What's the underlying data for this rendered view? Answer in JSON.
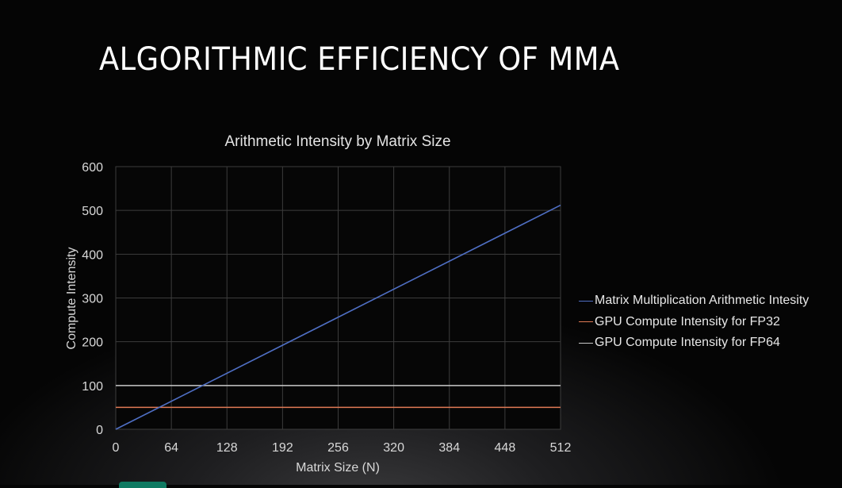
{
  "slide": {
    "title": "ALGORITHMIC EFFICIENCY OF MMA"
  },
  "chart_data": {
    "type": "line",
    "title": "Arithmetic Intensity by Matrix Size",
    "xlabel": "Matrix Size (N)",
    "ylabel": "Compute Intensity",
    "x_ticks": [
      "0",
      "64",
      "128",
      "192",
      "256",
      "320",
      "384",
      "448",
      "512"
    ],
    "y_ticks": [
      "0",
      "100",
      "200",
      "300",
      "400",
      "500",
      "600"
    ],
    "xlim": [
      0,
      512
    ],
    "ylim": [
      0,
      600
    ],
    "grid": true,
    "legend_position": "right",
    "series": [
      {
        "name": "Matrix Multiplication Arithmetic Intesity",
        "color": "#4f6fc4",
        "x": [
          0,
          512
        ],
        "y": [
          0,
          512
        ]
      },
      {
        "name": "GPU Compute Intensity for FP32",
        "color": "#e07a55",
        "x": [
          0,
          512
        ],
        "y": [
          50,
          50
        ]
      },
      {
        "name": "GPU Compute Intensity for FP64",
        "color": "#c8c8c8",
        "x": [
          0,
          512
        ],
        "y": [
          100,
          100
        ]
      }
    ]
  },
  "colors": {
    "grid": "#3c3c3c",
    "axis_text": "#d8d8d8",
    "logo": "#0f7a62"
  }
}
